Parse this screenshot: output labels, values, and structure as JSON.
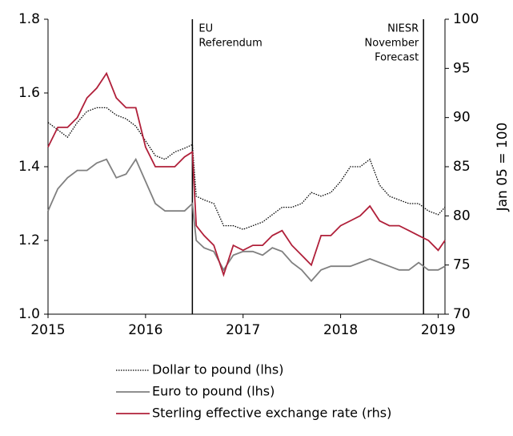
{
  "chart_data": {
    "type": "line",
    "x": [
      2015.0,
      2015.1,
      2015.2,
      2015.3,
      2015.4,
      2015.5,
      2015.6,
      2015.7,
      2015.8,
      2015.9,
      2016.0,
      2016.1,
      2016.2,
      2016.3,
      2016.4,
      2016.48,
      2016.52,
      2016.6,
      2016.7,
      2016.8,
      2016.9,
      2017.0,
      2017.1,
      2017.2,
      2017.3,
      2017.4,
      2017.5,
      2017.6,
      2017.7,
      2017.8,
      2017.9,
      2018.0,
      2018.1,
      2018.2,
      2018.3,
      2018.4,
      2018.5,
      2018.6,
      2018.7,
      2018.8,
      2018.9,
      2019.0,
      2019.07
    ],
    "series": [
      {
        "name": "Dollar to pound (lhs)",
        "color": "#000000",
        "dash": true,
        "values": [
          1.52,
          1.5,
          1.48,
          1.52,
          1.55,
          1.56,
          1.56,
          1.54,
          1.53,
          1.51,
          1.47,
          1.43,
          1.42,
          1.44,
          1.45,
          1.46,
          1.32,
          1.31,
          1.3,
          1.24,
          1.24,
          1.23,
          1.24,
          1.25,
          1.27,
          1.29,
          1.29,
          1.3,
          1.33,
          1.32,
          1.33,
          1.36,
          1.4,
          1.4,
          1.42,
          1.35,
          1.32,
          1.31,
          1.3,
          1.3,
          1.28,
          1.27,
          1.29
        ]
      },
      {
        "name": "Euro to pound (lhs)",
        "color": "#808080",
        "values": [
          1.28,
          1.34,
          1.37,
          1.39,
          1.39,
          1.41,
          1.42,
          1.37,
          1.38,
          1.42,
          1.36,
          1.3,
          1.28,
          1.28,
          1.28,
          1.3,
          1.2,
          1.18,
          1.17,
          1.12,
          1.16,
          1.17,
          1.17,
          1.16,
          1.18,
          1.17,
          1.14,
          1.12,
          1.09,
          1.12,
          1.13,
          1.13,
          1.13,
          1.14,
          1.15,
          1.14,
          1.13,
          1.12,
          1.12,
          1.14,
          1.12,
          1.12,
          1.13
        ]
      },
      {
        "name": "Sterling effective exchange rate (rhs)",
        "color": "#b0203a",
        "axis": "y2",
        "values": [
          87,
          89,
          89,
          90,
          92,
          93,
          94.5,
          92,
          91,
          91,
          87,
          85,
          85,
          85,
          86,
          86.5,
          79,
          78,
          77,
          74,
          77,
          76.5,
          77,
          77,
          78,
          78.5,
          77,
          76,
          75,
          78,
          78,
          79,
          79.5,
          80,
          81,
          79.5,
          79,
          79,
          78.5,
          78,
          77.5,
          76.5,
          77.5
        ]
      }
    ],
    "xlim": [
      2015,
      2019.07
    ],
    "xticks": [
      2015,
      2016,
      2017,
      2018,
      2019
    ],
    "ylim": [
      1.0,
      1.8
    ],
    "yticks": [
      {
        "value": 1.0,
        "label": "1.0"
      },
      1.2,
      1.4,
      1.6,
      1.8
    ],
    "y2lim": [
      70,
      100
    ],
    "y2ticks": [
      70,
      75,
      80,
      85,
      90,
      95,
      100
    ],
    "y2label": "Jan 05 = 100",
    "annotations": [
      {
        "x": 2016.48,
        "lines": [
          "EU",
          "Referendum"
        ],
        "align": "left"
      },
      {
        "x": 2018.85,
        "lines": [
          "NIESR",
          "November",
          "Forecast"
        ],
        "align": "right"
      }
    ]
  }
}
